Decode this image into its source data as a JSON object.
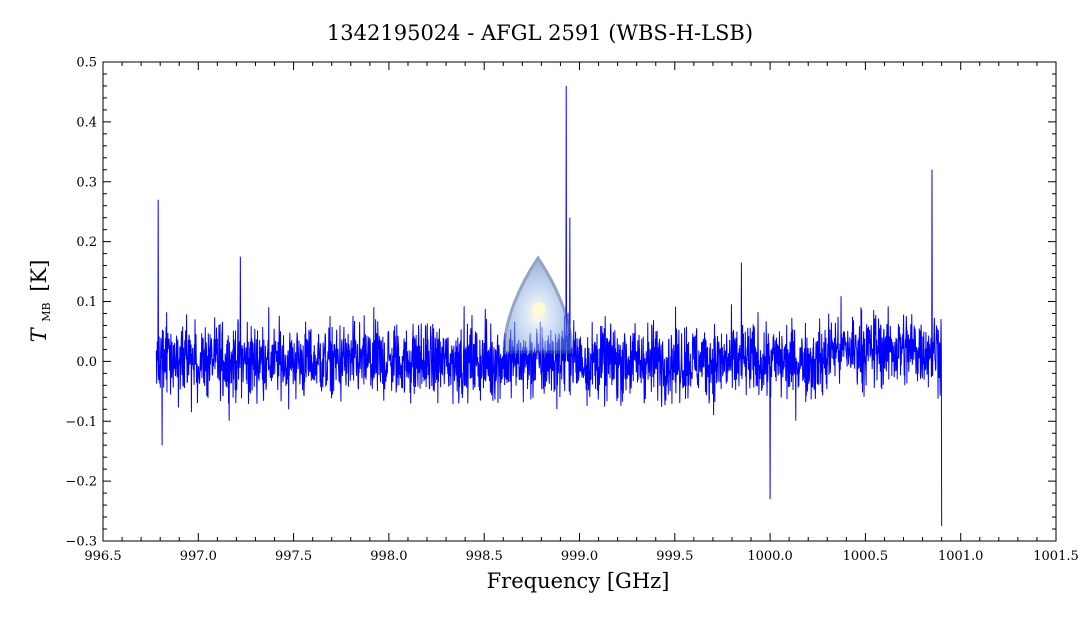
{
  "chart_data": {
    "type": "line",
    "title": "1342195024 - AFGL 2591 (WBS-H-LSB)",
    "xlabel": "Frequency [GHz]",
    "ylabel_main": "T",
    "ylabel_sub": "MB",
    "ylabel_unit": "[K]",
    "xlim": [
      996.5,
      1001.5
    ],
    "ylim": [
      -0.3,
      0.5
    ],
    "x_ticks": [
      996.5,
      997.0,
      997.5,
      998.0,
      998.5,
      999.0,
      999.5,
      1000.0,
      1000.5,
      1001.0,
      1001.5
    ],
    "x_tick_labels": [
      "996.5",
      "997.0",
      "997.5",
      "998.0",
      "998.5",
      "999.0",
      "999.5",
      "1000.0",
      "1000.5",
      "1001.0",
      "1001.5"
    ],
    "y_ticks": [
      -0.3,
      -0.2,
      -0.1,
      0.0,
      0.1,
      0.2,
      0.3,
      0.4,
      0.5
    ],
    "y_tick_labels": [
      "−0.3",
      "−0.2",
      "−0.1",
      "0.0",
      "0.1",
      "0.2",
      "0.3",
      "0.4",
      "0.5"
    ],
    "grid": false,
    "series": [
      {
        "color": "#0000ff",
        "x_range": [
          996.78,
          1000.9
        ],
        "noise_level_K": 0.05,
        "features": [
          {
            "x": 996.79,
            "y": 0.27
          },
          {
            "x": 996.81,
            "y": -0.14
          },
          {
            "x": 997.22,
            "y": 0.175
          },
          {
            "x": 998.93,
            "y": 0.46
          },
          {
            "x": 998.95,
            "y": 0.24
          },
          {
            "x": 999.85,
            "y": 0.165
          },
          {
            "x": 1000.0,
            "y": -0.23
          },
          {
            "x": 1000.85,
            "y": 0.32
          },
          {
            "x": 1000.9,
            "y": -0.275
          }
        ]
      }
    ]
  }
}
